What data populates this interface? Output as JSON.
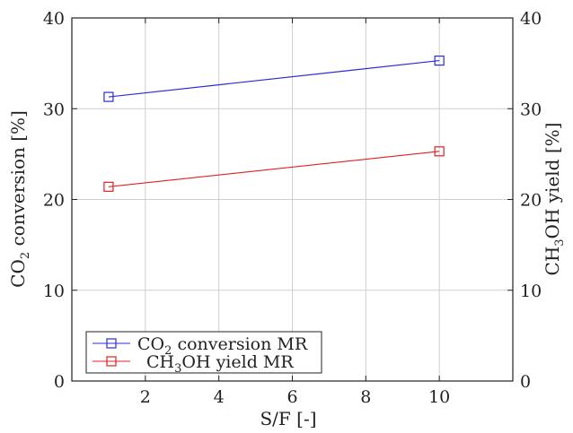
{
  "chart_data": {
    "type": "line",
    "xlabel": "S/F [-]",
    "ylabel_left": {
      "pre": "CO",
      "sub": "2",
      "post": " conversion [%]"
    },
    "ylabel_right": {
      "pre": "CH",
      "sub": "3",
      "post": "OH yield [%]"
    },
    "xlim": [
      0,
      12
    ],
    "ylim": [
      0,
      40
    ],
    "xticks": [
      2,
      4,
      6,
      8,
      10
    ],
    "yticks": [
      0,
      10,
      20,
      30,
      40
    ],
    "grid": true,
    "legend_position": "bottom-left",
    "series": [
      {
        "name_parts": {
          "pre": "CO",
          "sub": "2",
          "post": " conversion MR"
        },
        "color": "#2b2bd9",
        "marker": "square-open",
        "x": [
          1,
          10
        ],
        "y": [
          31.3,
          35.3
        ]
      },
      {
        "name_parts": {
          "pre": "CH",
          "sub": "3",
          "post": "OH yield MR"
        },
        "color": "#e02020",
        "marker": "square-open",
        "x": [
          1,
          10
        ],
        "y": [
          21.4,
          25.3
        ]
      }
    ]
  }
}
